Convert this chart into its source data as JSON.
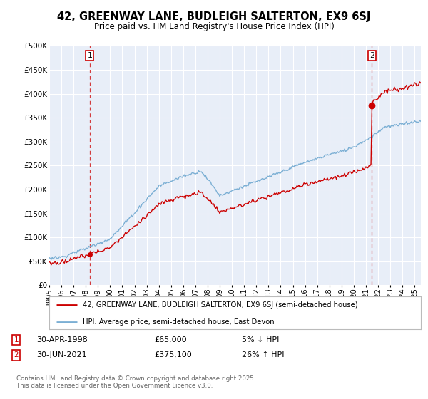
{
  "title": "42, GREENWAY LANE, BUDLEIGH SALTERTON, EX9 6SJ",
  "subtitle": "Price paid vs. HM Land Registry's House Price Index (HPI)",
  "legend_line1": "42, GREENWAY LANE, BUDLEIGH SALTERTON, EX9 6SJ (semi-detached house)",
  "legend_line2": "HPI: Average price, semi-detached house, East Devon",
  "property_color": "#cc0000",
  "hpi_color": "#7bafd4",
  "transaction1_date": "30-APR-1998",
  "transaction1_price": "£65,000",
  "transaction1_hpi": "5% ↓ HPI",
  "transaction2_date": "30-JUN-2021",
  "transaction2_price": "£375,100",
  "transaction2_hpi": "26% ↑ HPI",
  "footer": "Contains HM Land Registry data © Crown copyright and database right 2025.\nThis data is licensed under the Open Government Licence v3.0.",
  "ylim": [
    0,
    500000
  ],
  "yticks": [
    0,
    50000,
    100000,
    150000,
    200000,
    250000,
    300000,
    350000,
    400000,
    450000,
    500000
  ],
  "ytick_labels": [
    "£0",
    "£50K",
    "£100K",
    "£150K",
    "£200K",
    "£250K",
    "£300K",
    "£350K",
    "£400K",
    "£450K",
    "£500K"
  ],
  "background_color": "#ffffff",
  "plot_bg_color": "#e8eef8",
  "grid_color": "#ffffff",
  "vline1_x": 1998.33,
  "vline2_x": 2021.5,
  "marker1_x": 1998.33,
  "marker1_y": 65000,
  "marker2_x": 2021.5,
  "marker2_y": 375100,
  "xmin": 1995,
  "xmax": 2025.5
}
